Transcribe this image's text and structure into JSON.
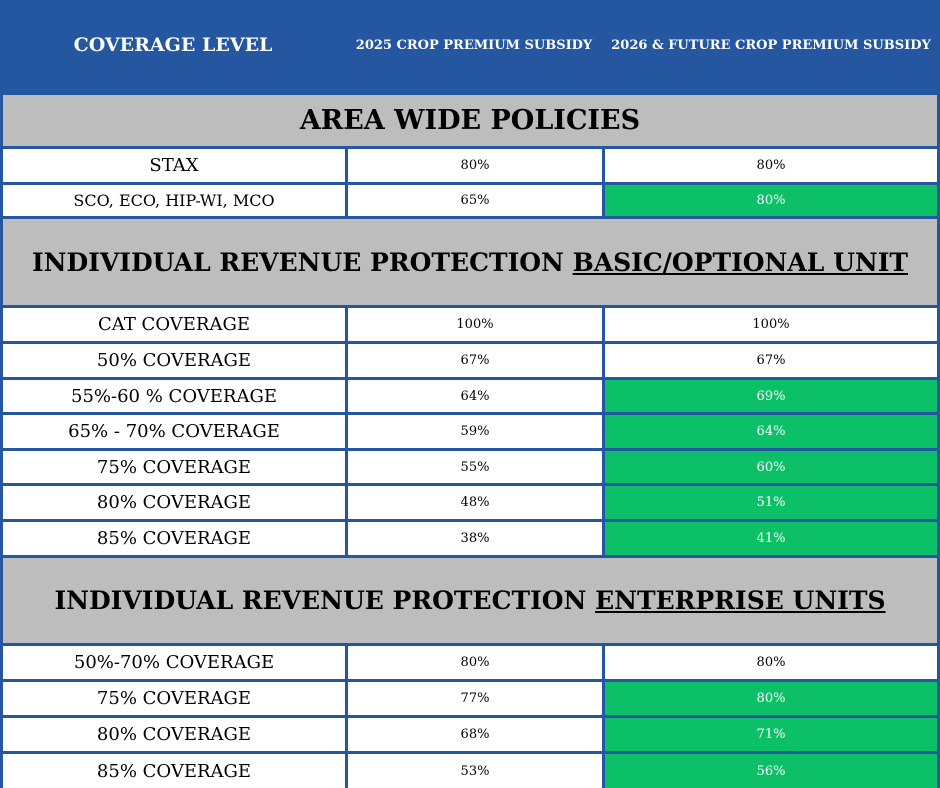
{
  "header": {
    "col1": "COVERAGE LEVEL",
    "col2": "2025 CROP PREMIUM SUBSIDY",
    "col3": "2026 & FUTURE CROP PREMIUM SUBSIDY"
  },
  "colors": {
    "header_bg": "#2457a0",
    "section_bg": "#bdbdbd",
    "increase_bg": "#0cc068"
  },
  "sections": [
    {
      "title": "AREA WIDE POLICIES",
      "title_underlined": "",
      "rows": [
        {
          "label": "STAX",
          "y2025": "80%",
          "y2026": "80%",
          "increase": false
        },
        {
          "label": "SCO, ECO, HIP-WI, MCO",
          "y2025": "65%",
          "y2026": "80%",
          "increase": true
        }
      ]
    },
    {
      "title": "INDIVIDUAL REVENUE PROTECTION ",
      "title_underlined": "BASIC/OPTIONAL UNIT",
      "rows": [
        {
          "label": "CAT COVERAGE",
          "y2025": "100%",
          "y2026": "100%",
          "increase": false
        },
        {
          "label": "50% COVERAGE",
          "y2025": "67%",
          "y2026": "67%",
          "increase": false
        },
        {
          "label": "55%-60 % COVERAGE",
          "y2025": "64%",
          "y2026": "69%",
          "increase": true
        },
        {
          "label": "65% - 70%  COVERAGE",
          "y2025": "59%",
          "y2026": "64%",
          "increase": true
        },
        {
          "label": "75% COVERAGE",
          "y2025": "55%",
          "y2026": "60%",
          "increase": true
        },
        {
          "label": "80%  COVERAGE",
          "y2025": "48%",
          "y2026": "51%",
          "increase": true
        },
        {
          "label": "85% COVERAGE",
          "y2025": "38%",
          "y2026": "41%",
          "increase": true
        }
      ]
    },
    {
      "title": "INDIVIDUAL REVENUE PROTECTION ",
      "title_underlined": "ENTERPRISE UNITS",
      "rows": [
        {
          "label": "50%-70% COVERAGE",
          "y2025": "80%",
          "y2026": "80%",
          "increase": false
        },
        {
          "label": "75% COVERAGE",
          "y2025": "77%",
          "y2026": "80%",
          "increase": true
        },
        {
          "label": "80% COVERAGE",
          "y2025": "68%",
          "y2026": "71%",
          "increase": true
        },
        {
          "label": "85% COVERAGE",
          "y2025": "53%",
          "y2026": "56%",
          "increase": true
        }
      ]
    }
  ]
}
